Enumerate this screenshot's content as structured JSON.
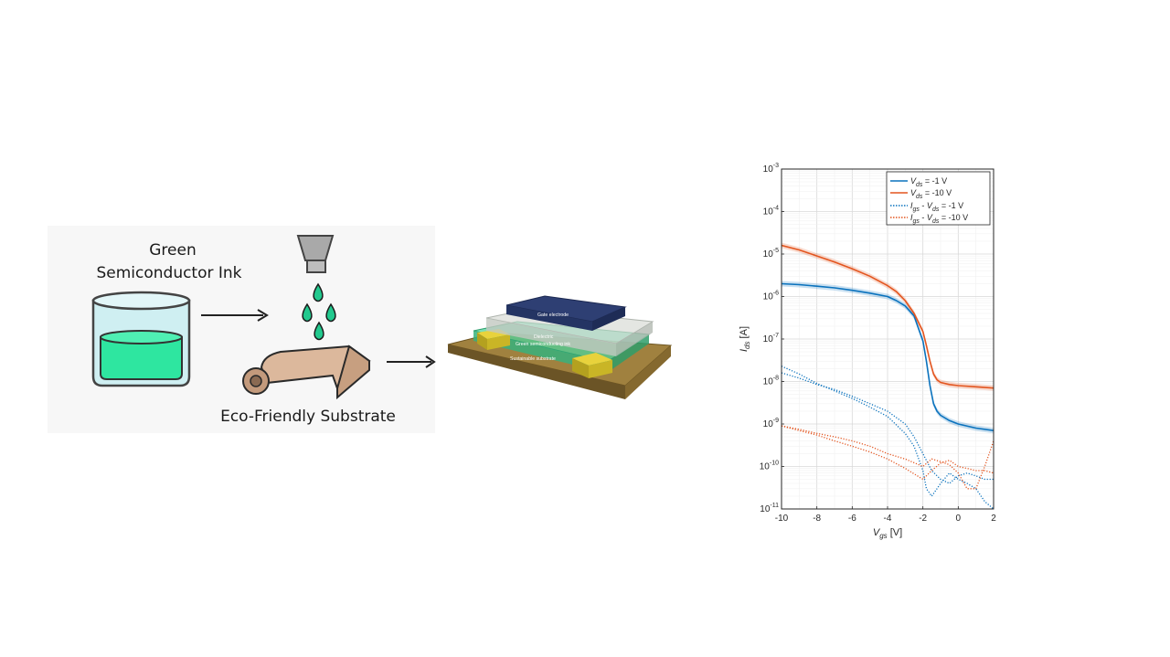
{
  "process": {
    "ink_label_line1": "Green",
    "ink_label_line2": "Semiconductor Ink",
    "substrate_label": "Eco-Friendly Substrate"
  },
  "device": {
    "layers": [
      "Gate electrode",
      "Dielectric",
      "Green semiconducting ink",
      "Sustainable substrate"
    ]
  },
  "colors": {
    "ink": "#2ee6a0",
    "beaker": "#cfeff2",
    "drops": "#22c98e",
    "substrate_roll": "#dcb89c",
    "blue": "#0a72bd",
    "orange": "#e3551f"
  },
  "chart_data": {
    "type": "line",
    "title": "",
    "xlabel": "V_gs [V]",
    "ylabel": "I_ds [A]",
    "xlim": [
      -10,
      2
    ],
    "ylim_log10": [
      -11,
      -3
    ],
    "y_scale": "log",
    "x_ticks": [
      -10,
      -8,
      -6,
      -4,
      -2,
      0,
      2
    ],
    "y_ticks": [
      "10-3",
      "10-4",
      "10-5",
      "10-6",
      "10-7",
      "10-8",
      "10-9",
      "10-10",
      "10-11"
    ],
    "grid": true,
    "legend": "top-right",
    "legend_labels": {
      "s1": "V_ds = -1 V",
      "s2": "V_ds = -10 V",
      "s3": "I_gs - V_ds = -1 V",
      "s4": "I_gs - V_ds = -10 V"
    },
    "series": [
      {
        "name": "V_ds = -1 V",
        "color": "#0a72bd",
        "style": "solid",
        "band": true,
        "x": [
          -10,
          -9,
          -8,
          -7,
          -6,
          -5,
          -4,
          -3.5,
          -3,
          -2.5,
          -2,
          -1.8,
          -1.6,
          -1.4,
          -1.2,
          -1,
          -0.5,
          0,
          1,
          2
        ],
        "y": [
          2e-06,
          1.9e-06,
          1.75e-06,
          1.6e-06,
          1.4e-06,
          1.2e-06,
          1e-06,
          8e-07,
          6e-07,
          3.5e-07,
          9e-08,
          3e-08,
          8e-09,
          3e-09,
          2e-09,
          1.6e-09,
          1.2e-09,
          1e-09,
          8e-10,
          7e-10
        ]
      },
      {
        "name": "V_ds = -10 V",
        "color": "#e3551f",
        "style": "solid",
        "band": true,
        "x": [
          -10,
          -9,
          -8,
          -7,
          -6,
          -5,
          -4,
          -3.5,
          -3,
          -2.5,
          -2,
          -1.8,
          -1.6,
          -1.4,
          -1.2,
          -1,
          -0.5,
          0,
          1,
          2
        ],
        "y": [
          1.6e-05,
          1.25e-05,
          9e-06,
          6.5e-06,
          4.5e-06,
          3e-06,
          1.8e-06,
          1.3e-06,
          8e-07,
          4e-07,
          1.5e-07,
          7e-08,
          3e-08,
          1.5e-08,
          1.1e-08,
          9.5e-09,
          8.5e-09,
          8e-09,
          7.5e-09,
          7e-09
        ]
      },
      {
        "name": "I_gs - V_ds = -1 V",
        "color": "#0a72bd",
        "style": "dotted",
        "band": false,
        "x": [
          -10,
          -9,
          -8,
          -7,
          -6,
          -5,
          -4,
          -3,
          -2.5,
          -2,
          -1.8,
          -1.5,
          -1.2,
          -1,
          -0.5,
          0,
          0.5,
          1,
          1.5,
          2
        ],
        "y": [
          2.3e-08,
          1.5e-08,
          9e-09,
          6e-09,
          4e-09,
          2.5e-09,
          1.5e-09,
          6e-10,
          3e-10,
          8e-11,
          3e-11,
          2e-11,
          3e-11,
          4e-11,
          7e-11,
          5e-11,
          4e-11,
          3e-11,
          1.5e-11,
          1e-11
        ]
      },
      {
        "name": "I_gs - V_ds = -1 V (return)",
        "color": "#0a72bd",
        "style": "dotted",
        "band": false,
        "x": [
          -10,
          -9,
          -8,
          -7,
          -6,
          -5,
          -4,
          -3,
          -2.5,
          -2,
          -1.5,
          -1,
          -0.5,
          0,
          0.5,
          1,
          1.5,
          2
        ],
        "y": [
          1.6e-08,
          1.2e-08,
          8.5e-09,
          6.5e-09,
          4.5e-09,
          3e-09,
          2e-09,
          1e-09,
          5e-10,
          2e-10,
          8e-11,
          5e-11,
          4e-11,
          6e-11,
          7e-11,
          6e-11,
          5e-11,
          5e-11
        ]
      },
      {
        "name": "I_gs - V_ds = -10 V",
        "color": "#e3551f",
        "style": "dotted",
        "band": false,
        "x": [
          -10,
          -9,
          -8,
          -7,
          -6,
          -5,
          -4,
          -3,
          -2,
          -1.5,
          -1,
          -0.5,
          0,
          0.5,
          1,
          1.5,
          2
        ],
        "y": [
          9e-10,
          7e-10,
          5.5e-10,
          4e-10,
          3e-10,
          2.2e-10,
          1.5e-10,
          9e-11,
          5e-11,
          8e-11,
          1.2e-10,
          1.4e-10,
          1e-10,
          9e-11,
          8e-11,
          8e-11,
          7e-11
        ]
      },
      {
        "name": "I_gs - V_ds = -10 V (return)",
        "color": "#e3551f",
        "style": "dotted",
        "band": false,
        "x": [
          -10,
          -9,
          -8,
          -7,
          -6,
          -5,
          -4,
          -3,
          -2,
          -1.5,
          -1,
          -0.5,
          0,
          0.5,
          1,
          1.5,
          2
        ],
        "y": [
          9e-10,
          7.5e-10,
          6e-10,
          5e-10,
          4e-10,
          3e-10,
          2e-10,
          1.5e-10,
          1e-10,
          1.5e-10,
          1.3e-10,
          1.1e-10,
          7e-11,
          3e-11,
          3e-11,
          1e-10,
          4e-10
        ]
      }
    ]
  }
}
